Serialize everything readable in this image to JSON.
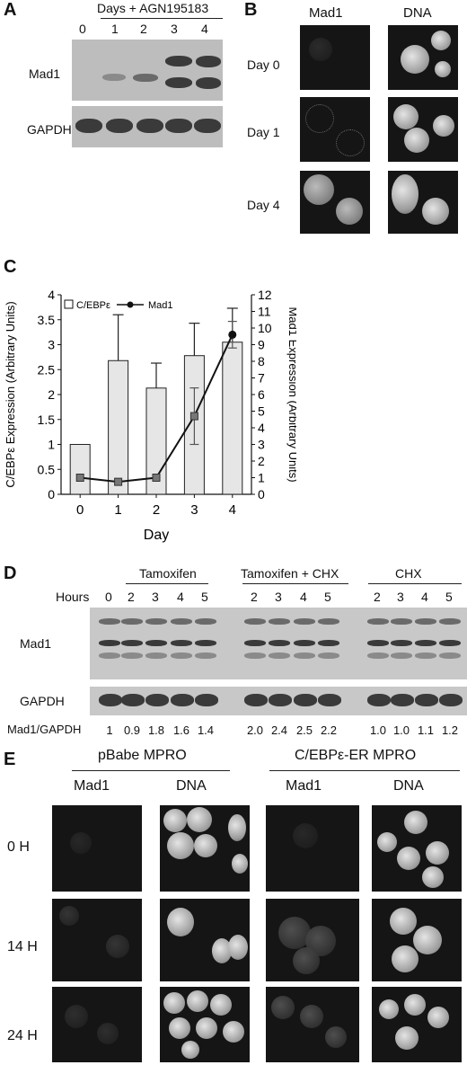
{
  "panelA": {
    "label": "A",
    "header": "Days + AGN195183",
    "days": [
      "0",
      "1",
      "2",
      "3",
      "4"
    ],
    "rows": [
      "Mad1",
      "GAPDH"
    ]
  },
  "panelB": {
    "label": "B",
    "cols": [
      "Mad1",
      "DNA"
    ],
    "rows": [
      "Day 0",
      "Day 1",
      "Day 4"
    ]
  },
  "panelC": {
    "label": "C",
    "xlabel": "Day",
    "ylabel_left": "C/EBPε Expression (Arbitrary Units)",
    "ylabel_right": "Mad1 Expression (Arbitrary Units)",
    "legend": [
      "C/EBPε",
      "Mad1"
    ]
  },
  "chart_data": {
    "type": "bar",
    "categories": [
      "0",
      "1",
      "2",
      "3",
      "4"
    ],
    "xlabel": "Day",
    "ylabel": "C/EBPε Expression (Arbitrary Units)",
    "y2label": "Mad1 Expression (Arbitrary Units)",
    "ylim": [
      0,
      4
    ],
    "y2lim": [
      0,
      12
    ],
    "left_ticks": [
      "0",
      "0.5",
      "1",
      "1.5",
      "2",
      "2.5",
      "3",
      "3.5",
      "4"
    ],
    "right_ticks": [
      "0",
      "1",
      "2",
      "3",
      "4",
      "5",
      "6",
      "7",
      "8",
      "9",
      "10",
      "11",
      "12"
    ],
    "series": [
      {
        "name": "C/EBPε",
        "kind": "bar",
        "axis": "left",
        "values": [
          1.0,
          2.68,
          2.13,
          2.78,
          3.05
        ],
        "error": [
          0,
          0.92,
          0.5,
          0.65,
          0.68
        ]
      },
      {
        "name": "Mad1",
        "kind": "line",
        "axis": "right",
        "values": [
          1.0,
          0.75,
          1.0,
          4.7,
          9.6
        ],
        "error": [
          0,
          0,
          0,
          1.7,
          0.8
        ]
      }
    ],
    "legend_position": "top-left",
    "grid": false
  },
  "panelD": {
    "label": "D",
    "groups": [
      "Tamoxifen",
      "Tamoxifen + CHX",
      "CHX"
    ],
    "hours_label": "Hours",
    "hours": [
      "0",
      "2",
      "3",
      "4",
      "5",
      "2",
      "3",
      "4",
      "5",
      "2",
      "3",
      "4",
      "5"
    ],
    "rows": [
      "Mad1",
      "GAPDH"
    ],
    "ratio_label": "Mad1/GAPDH",
    "ratios": [
      "1",
      "0.9",
      "1.8",
      "1.6",
      "1.4",
      "2.0",
      "2.4",
      "2.5",
      "2.2",
      "1.0",
      "1.0",
      "1.1",
      "1.2"
    ]
  },
  "panelE": {
    "label": "E",
    "groups": [
      "pBabe MPRO",
      "C/EBPε-ER MPRO"
    ],
    "cols": [
      "Mad1",
      "DNA",
      "Mad1",
      "DNA"
    ],
    "rows": [
      "0 H",
      "14 H",
      "24 H"
    ]
  }
}
